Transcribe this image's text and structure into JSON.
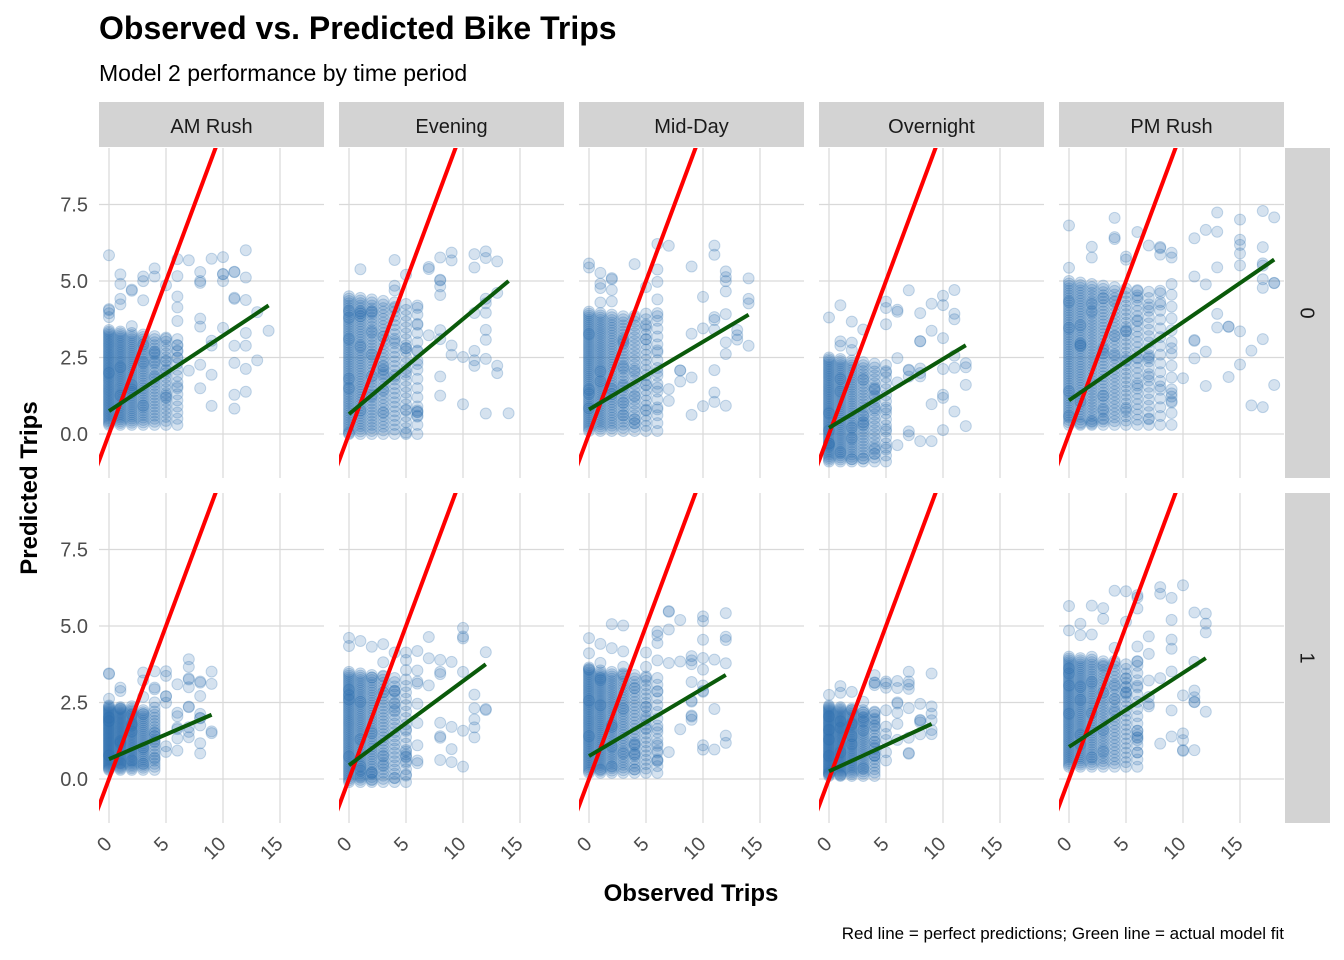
{
  "chart_data": {
    "type": "scatter",
    "title": "Observed vs. Predicted Bike Trips",
    "subtitle": "Model 2 performance by time period",
    "xlabel": "Observed Trips",
    "ylabel": "Predicted Trips",
    "caption": "Red line = perfect predictions; Green line = actual model fit",
    "xlim": [
      -1,
      19
    ],
    "ylim": [
      -1.1,
      9.4
    ],
    "x_ticks": [
      0,
      5,
      10,
      15
    ],
    "x_tick_labels": [
      "0",
      "5",
      "10",
      "15"
    ],
    "y_ticks": [
      0,
      2.5,
      5,
      7.5
    ],
    "y_tick_labels": [
      "0.0",
      "2.5",
      "5.0",
      "7.5"
    ],
    "grid": true,
    "facet_columns": [
      "AM Rush",
      "Evening",
      "Mid-Day",
      "Overnight",
      "PM Rush"
    ],
    "facet_rows": [
      "0",
      "1"
    ],
    "colors": {
      "points": "#2C6FB0",
      "perfect_line": "#FF0000",
      "fit_line": "#0A5A0A",
      "strip": "#D3D3D3",
      "grid": "#D9D9D9"
    },
    "perfect_line": {
      "slope": 1,
      "intercept": 0
    },
    "panels": [
      {
        "col": "AM Rush",
        "row": "0",
        "fit": {
          "x": [
            0,
            14
          ],
          "y": [
            0.75,
            4.2
          ]
        },
        "cloud": {
          "xmax_dense": 6,
          "ymin": 0.3,
          "ymax_dense": 3.4,
          "outlier_xmax": 14,
          "outlier_ymax": 6.9
        }
      },
      {
        "col": "Evening",
        "row": "0",
        "fit": {
          "x": [
            0,
            14
          ],
          "y": [
            0.65,
            5.0
          ]
        },
        "cloud": {
          "xmax_dense": 6,
          "ymin": 0.0,
          "ymax_dense": 4.5,
          "outlier_xmax": 14,
          "outlier_ymax": 6.9
        }
      },
      {
        "col": "Mid-Day",
        "row": "0",
        "fit": {
          "x": [
            0,
            14
          ],
          "y": [
            0.8,
            3.9
          ]
        },
        "cloud": {
          "xmax_dense": 6,
          "ymin": 0.1,
          "ymax_dense": 4.0,
          "outlier_xmax": 14,
          "outlier_ymax": 7.2
        }
      },
      {
        "col": "Overnight",
        "row": "0",
        "fit": {
          "x": [
            0,
            12
          ],
          "y": [
            0.2,
            2.9
          ]
        },
        "cloud": {
          "xmax_dense": 5,
          "ymin": -0.9,
          "ymax_dense": 2.5,
          "outlier_xmax": 12,
          "outlier_ymax": 5.5
        }
      },
      {
        "col": "PM Rush",
        "row": "0",
        "fit": {
          "x": [
            0,
            18
          ],
          "y": [
            1.1,
            5.7
          ]
        },
        "cloud": {
          "xmax_dense": 9,
          "ymin": 0.3,
          "ymax_dense": 5.0,
          "outlier_xmax": 18,
          "outlier_ymax": 8.5
        }
      },
      {
        "col": "AM Rush",
        "row": "1",
        "fit": {
          "x": [
            0,
            9
          ],
          "y": [
            0.65,
            2.1
          ]
        },
        "cloud": {
          "xmax_dense": 4,
          "ymin": 0.3,
          "ymax_dense": 2.4,
          "outlier_xmax": 9,
          "outlier_ymax": 4.4
        }
      },
      {
        "col": "Evening",
        "row": "1",
        "fit": {
          "x": [
            0,
            12
          ],
          "y": [
            0.45,
            3.75
          ]
        },
        "cloud": {
          "xmax_dense": 5,
          "ymin": -0.1,
          "ymax_dense": 3.5,
          "outlier_xmax": 12,
          "outlier_ymax": 5.8
        }
      },
      {
        "col": "Mid-Day",
        "row": "1",
        "fit": {
          "x": [
            0,
            12
          ],
          "y": [
            0.75,
            3.4
          ]
        },
        "cloud": {
          "xmax_dense": 6,
          "ymin": 0.2,
          "ymax_dense": 3.6,
          "outlier_xmax": 12,
          "outlier_ymax": 6.4
        }
      },
      {
        "col": "Overnight",
        "row": "1",
        "fit": {
          "x": [
            0,
            9
          ],
          "y": [
            0.25,
            1.8
          ]
        },
        "cloud": {
          "xmax_dense": 4,
          "ymin": 0.1,
          "ymax_dense": 2.4,
          "outlier_xmax": 9,
          "outlier_ymax": 3.9
        }
      },
      {
        "col": "PM Rush",
        "row": "1",
        "fit": {
          "x": [
            0,
            12
          ],
          "y": [
            1.05,
            3.95
          ]
        },
        "cloud": {
          "xmax_dense": 6,
          "ymin": 0.4,
          "ymax_dense": 4.0,
          "outlier_xmax": 12,
          "outlier_ymax": 7.5
        }
      }
    ]
  }
}
